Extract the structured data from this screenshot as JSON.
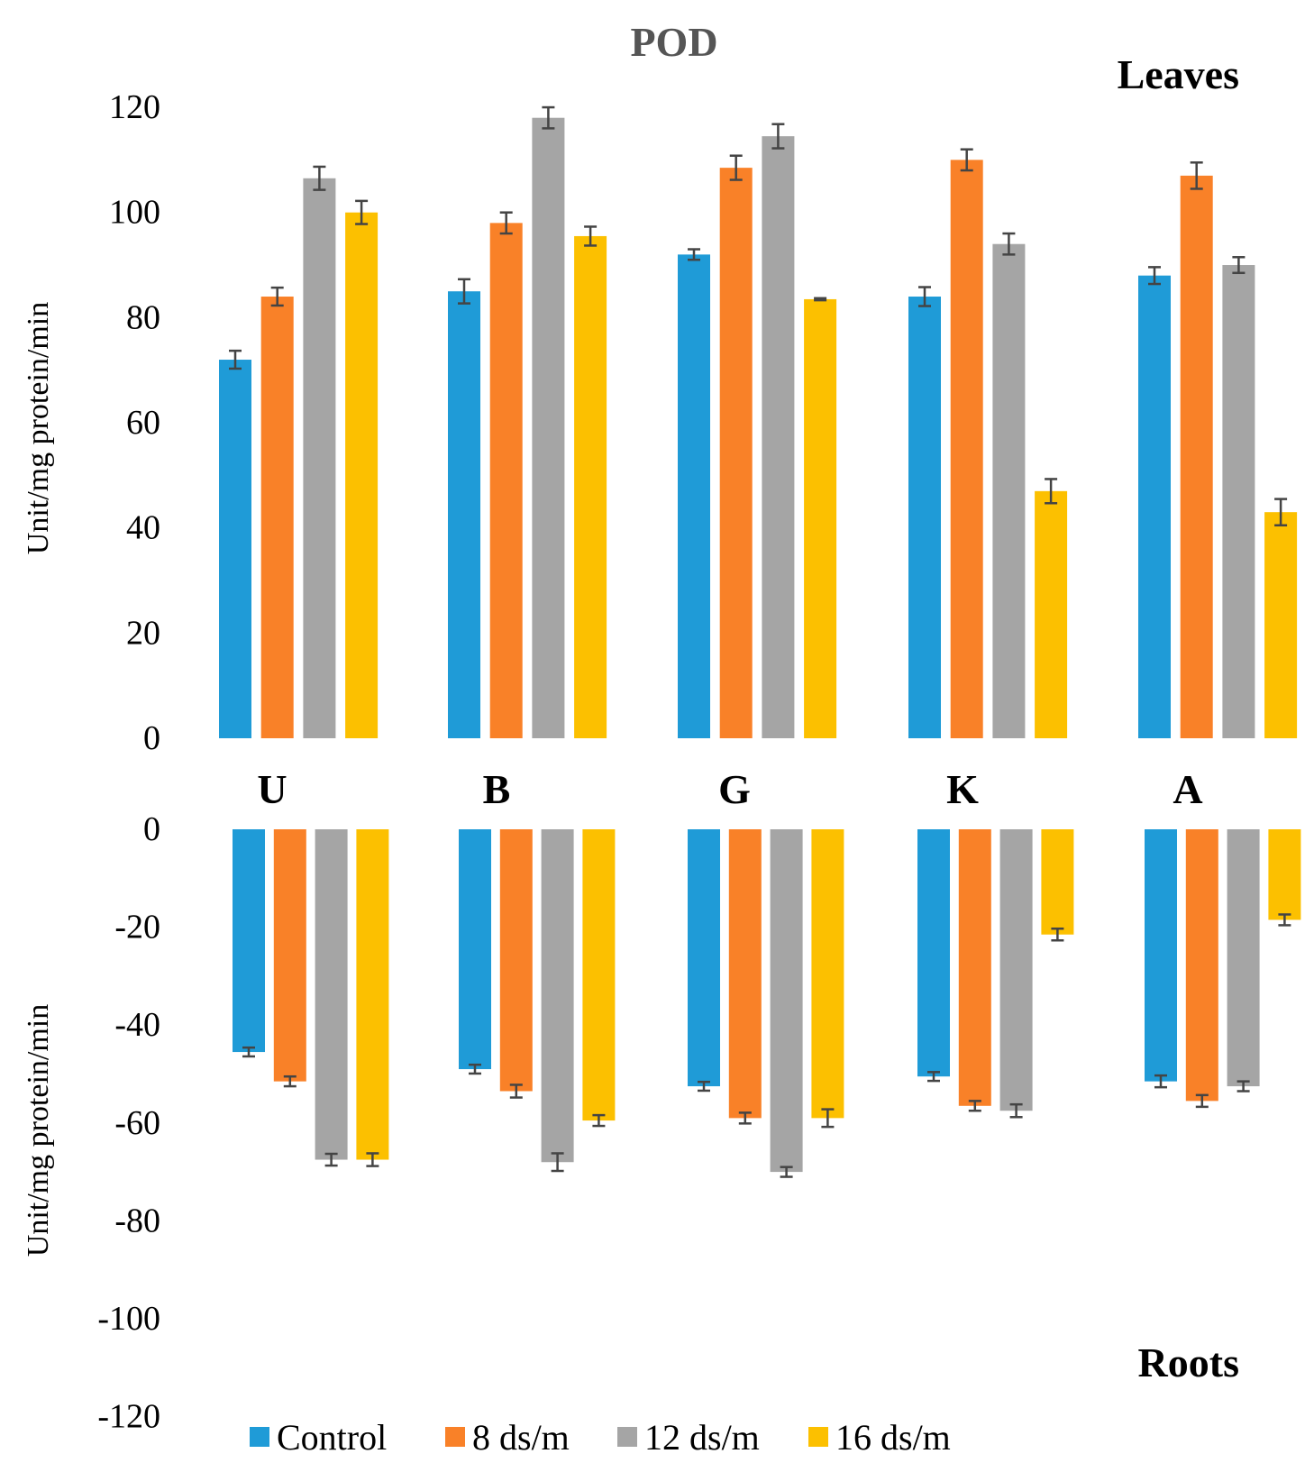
{
  "colors": {
    "Control": "#1f9bd7",
    "8 ds/m": "#f98128",
    "12 ds/m": "#a5a5a5",
    "16 ds/m": "#fcc000",
    "title": "#555555",
    "text": "#000000",
    "errorbar": "#444444"
  },
  "chart_data": [
    {
      "type": "bar",
      "panel": "Leaves",
      "title": "POD",
      "panel_label": "Leaves",
      "ylabel": "Unit/mg protein/min",
      "xlabel": "",
      "categories": [
        "U",
        "B",
        "G",
        "K",
        "A"
      ],
      "ylim": [
        0,
        120
      ],
      "yticks": [
        "0",
        "20",
        "40",
        "60",
        "80",
        "100",
        "120"
      ],
      "grid": false,
      "series": [
        {
          "name": "Control",
          "values": [
            72,
            85,
            92,
            84,
            88
          ],
          "errors": [
            1.7,
            2.3,
            1.0,
            1.8,
            1.6
          ]
        },
        {
          "name": "8 ds/m",
          "values": [
            84,
            98,
            108.5,
            110,
            107
          ],
          "errors": [
            1.7,
            2.0,
            2.3,
            2.0,
            2.5
          ]
        },
        {
          "name": "12 ds/m",
          "values": [
            106.5,
            118,
            114.5,
            94,
            90
          ],
          "errors": [
            2.2,
            2.0,
            2.3,
            2.0,
            1.5
          ]
        },
        {
          "name": "16 ds/m",
          "values": [
            100,
            95.5,
            83.5,
            47,
            43
          ],
          "errors": [
            2.2,
            1.8,
            0.2,
            2.3,
            2.5
          ]
        }
      ]
    },
    {
      "type": "bar",
      "panel": "Roots",
      "panel_label": "Roots",
      "ylabel": "Unit/mg protein/min",
      "xlabel": "",
      "categories": [
        "U",
        "B",
        "G",
        "K",
        "A"
      ],
      "ylim": [
        -120,
        0
      ],
      "yticks": [
        "0",
        "-20",
        "-40",
        "-60",
        "-80",
        "-100",
        "-120"
      ],
      "grid": false,
      "series": [
        {
          "name": "Control",
          "values": [
            -45.5,
            -49,
            -52.5,
            -50.5,
            -51.5
          ],
          "errors": [
            0.9,
            0.9,
            0.9,
            0.9,
            1.2
          ]
        },
        {
          "name": "8 ds/m",
          "values": [
            -51.5,
            -53.5,
            -59,
            -56.5,
            -55.5
          ],
          "errors": [
            1.0,
            1.3,
            1.1,
            1.0,
            1.2
          ]
        },
        {
          "name": "12 ds/m",
          "values": [
            -67.5,
            -68,
            -70,
            -57.5,
            -52.5
          ],
          "errors": [
            1.2,
            1.8,
            1.0,
            1.3,
            1.0
          ]
        },
        {
          "name": "16 ds/m",
          "values": [
            -67.5,
            -59.5,
            -59,
            -21.5,
            -18.5
          ],
          "errors": [
            1.3,
            1.1,
            1.8,
            1.2,
            1.1
          ]
        }
      ]
    }
  ],
  "legend": [
    "Control",
    "8 ds/m",
    "12 ds/m",
    "16 ds/m"
  ]
}
